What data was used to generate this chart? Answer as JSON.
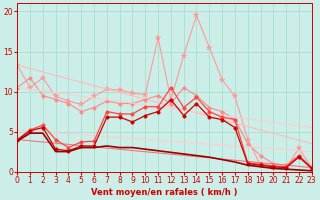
{
  "xlabel": "Vent moyen/en rafales ( km/h )",
  "xlim": [
    0,
    23
  ],
  "ylim": [
    0,
    21
  ],
  "yticks": [
    0,
    5,
    10,
    15,
    20
  ],
  "xticks": [
    0,
    1,
    2,
    3,
    4,
    5,
    6,
    7,
    8,
    9,
    10,
    11,
    12,
    13,
    14,
    15,
    16,
    17,
    18,
    19,
    20,
    21,
    22,
    23
  ],
  "background_color": "#cceee8",
  "grid_color": "#aaddcc",
  "series": [
    {
      "x": [
        0,
        1,
        2,
        3,
        4,
        5,
        6,
        7,
        8,
        9,
        10,
        11,
        12,
        13,
        14,
        15,
        16,
        17,
        18,
        19,
        20,
        21,
        22,
        23
      ],
      "y": [
        13.3,
        10.5,
        11.7,
        9.4,
        8.8,
        8.4,
        9.4,
        10.3,
        10.2,
        9.8,
        9.6,
        16.7,
        9.0,
        14.5,
        19.5,
        15.5,
        11.5,
        9.4,
        4.0,
        0.8,
        0.5,
        0.5,
        2.9,
        0.5
      ],
      "color": "#ff9999",
      "linewidth": 0.8,
      "marker": "*",
      "markersize": 4
    },
    {
      "x": [
        0,
        23
      ],
      "y": [
        13.3,
        3.5
      ],
      "color": "#ffbbbb",
      "linewidth": 0.8,
      "marker": null,
      "markersize": 0
    },
    {
      "x": [
        0,
        1,
        2,
        3,
        4,
        5,
        6,
        7,
        8,
        9,
        10,
        11,
        12,
        13,
        14,
        15,
        16,
        17,
        18,
        19,
        20,
        21,
        22,
        23
      ],
      "y": [
        10.5,
        11.7,
        9.5,
        9.0,
        8.5,
        7.5,
        8.0,
        8.8,
        8.5,
        8.5,
        9.0,
        9.5,
        8.5,
        10.5,
        9.5,
        8.0,
        7.5,
        6.5,
        3.5,
        2.0,
        1.0,
        0.8,
        2.0,
        0.4
      ],
      "color": "#ff8888",
      "linewidth": 0.8,
      "marker": "o",
      "markersize": 2.5
    },
    {
      "x": [
        0,
        23
      ],
      "y": [
        10.5,
        5.5
      ],
      "color": "#ffcccc",
      "linewidth": 0.8,
      "marker": null,
      "markersize": 0
    },
    {
      "x": [
        0,
        23
      ],
      "y": [
        5.2,
        2.5
      ],
      "color": "#ffcccc",
      "linewidth": 0.8,
      "marker": null,
      "markersize": 0
    },
    {
      "x": [
        0,
        23
      ],
      "y": [
        4.0,
        0.5
      ],
      "color": "#ee7777",
      "linewidth": 0.8,
      "marker": null,
      "markersize": 0
    },
    {
      "x": [
        0,
        1,
        2,
        3,
        4,
        5,
        6,
        7,
        8,
        9,
        10,
        11,
        12,
        13,
        14,
        15,
        16,
        17,
        18,
        19,
        20,
        21,
        22,
        23
      ],
      "y": [
        4.0,
        5.2,
        5.8,
        4.0,
        3.0,
        3.7,
        3.8,
        7.5,
        7.2,
        7.2,
        8.1,
        8.1,
        10.5,
        8.0,
        9.3,
        7.5,
        6.8,
        6.5,
        1.1,
        0.9,
        0.7,
        0.6,
        2.0,
        0.5
      ],
      "color": "#ff4444",
      "linewidth": 0.9,
      "marker": "o",
      "markersize": 2.5
    },
    {
      "x": [
        0,
        1,
        2,
        3,
        4,
        5,
        6,
        7,
        8,
        9,
        10,
        11,
        12,
        13,
        14,
        15,
        16,
        17,
        18,
        19,
        20,
        21,
        22,
        23
      ],
      "y": [
        3.9,
        5.1,
        5.5,
        2.8,
        2.6,
        3.2,
        3.2,
        6.8,
        6.8,
        6.2,
        7.0,
        7.5,
        9.0,
        7.0,
        8.5,
        6.8,
        6.5,
        5.5,
        1.0,
        0.8,
        0.6,
        0.5,
        1.8,
        0.4
      ],
      "color": "#cc0000",
      "linewidth": 0.9,
      "marker": "o",
      "markersize": 2.5
    },
    {
      "x": [
        0,
        1,
        2,
        3,
        4,
        5,
        6,
        7,
        8,
        9,
        10,
        11,
        12,
        13,
        14,
        15,
        16,
        17,
        18,
        19,
        20,
        21,
        22,
        23
      ],
      "y": [
        3.8,
        4.8,
        4.8,
        2.5,
        2.5,
        3.0,
        3.0,
        3.2,
        3.0,
        3.0,
        2.8,
        2.6,
        2.4,
        2.2,
        2.0,
        1.8,
        1.5,
        1.2,
        0.8,
        0.6,
        0.4,
        0.3,
        0.2,
        0.1
      ],
      "color": "#990000",
      "linewidth": 1.2,
      "marker": null,
      "markersize": 0
    }
  ]
}
